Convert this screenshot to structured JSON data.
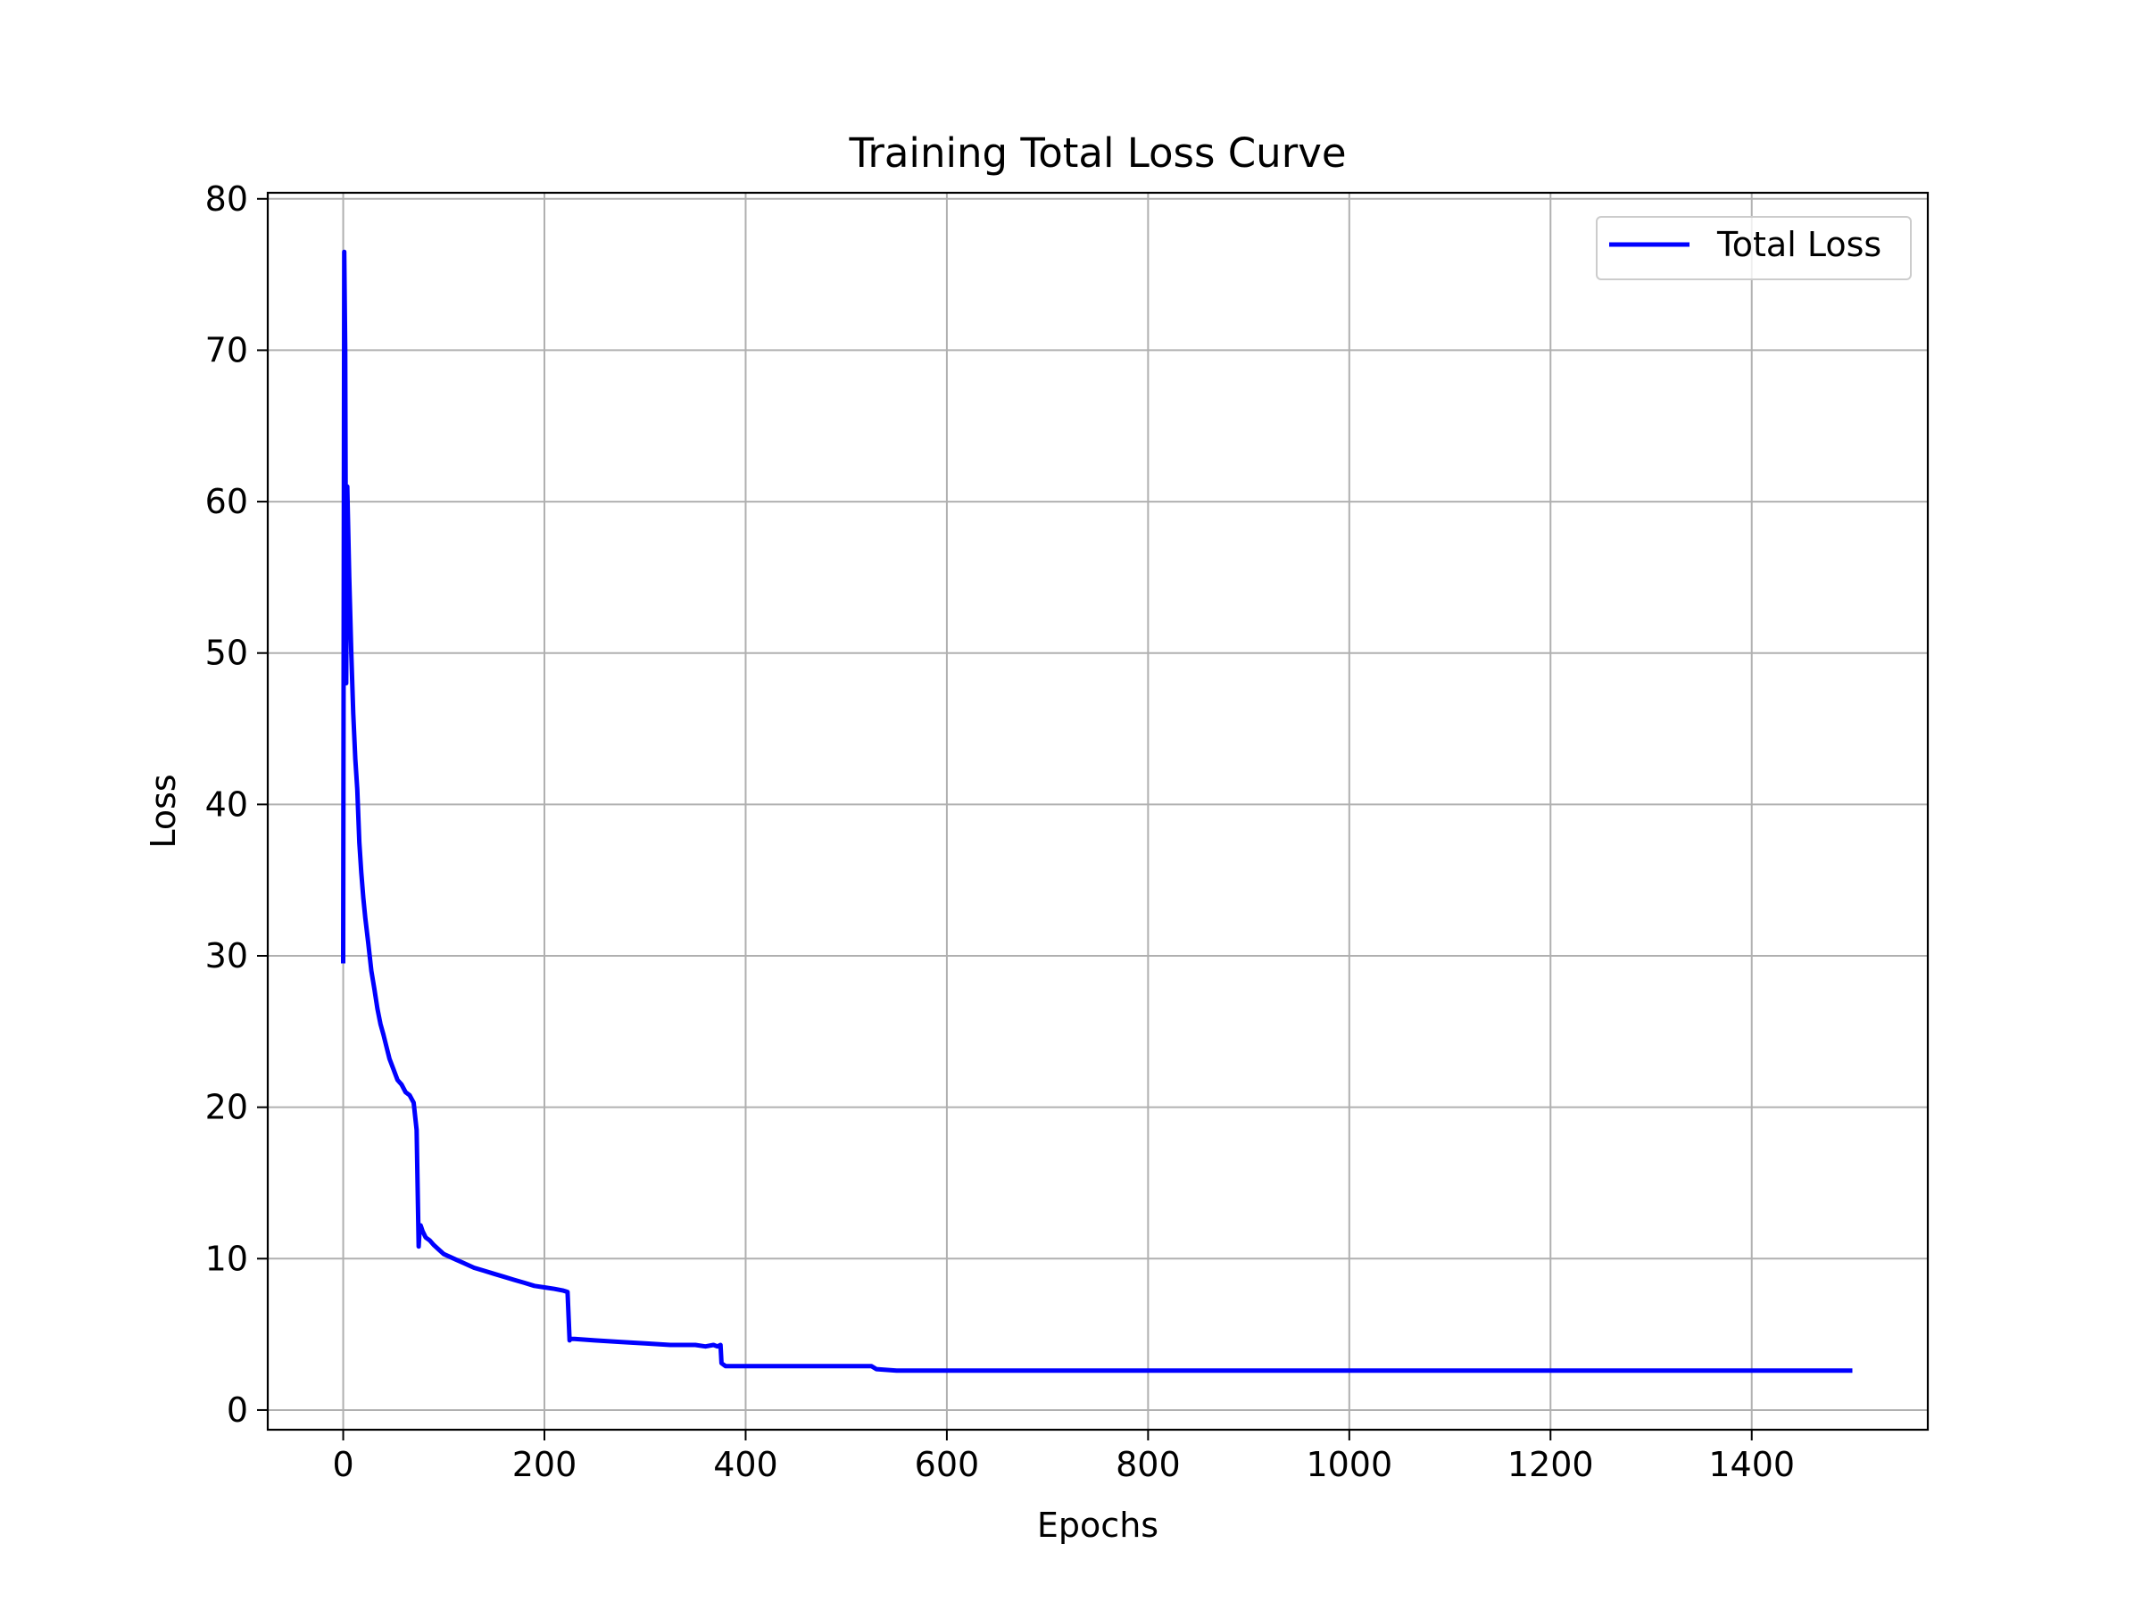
{
  "chart_data": {
    "type": "line",
    "title": "Training Total Loss Curve",
    "xlabel": "Epochs",
    "ylabel": "Loss",
    "xlim": [
      -75,
      1575
    ],
    "ylim": [
      -1.3,
      80.4
    ],
    "xticks": [
      0,
      200,
      400,
      600,
      800,
      1000,
      1200,
      1400
    ],
    "yticks": [
      0,
      10,
      20,
      30,
      40,
      50,
      60,
      70,
      80
    ],
    "xtick_labels": [
      "0",
      "200",
      "400",
      "600",
      "800",
      "1000",
      "1200",
      "1400"
    ],
    "ytick_labels": [
      "0",
      "10",
      "20",
      "30",
      "40",
      "50",
      "60",
      "70",
      "80"
    ],
    "grid": true,
    "legend_position": "top-right",
    "series": [
      {
        "name": "Total Loss",
        "color": "#0000ff",
        "x": [
          0,
          1,
          2,
          3,
          4,
          5,
          6,
          8,
          10,
          12,
          14,
          16,
          18,
          20,
          22,
          25,
          28,
          31,
          34,
          37,
          40,
          43,
          46,
          50,
          54,
          58,
          62,
          66,
          70,
          73,
          75,
          76,
          77,
          79,
          82,
          86,
          90,
          95,
          100,
          110,
          120,
          130,
          140,
          150,
          160,
          170,
          180,
          190,
          200,
          210,
          218,
          223,
          225,
          226,
          230,
          250,
          275,
          300,
          325,
          350,
          360,
          368,
          372,
          375,
          376,
          378,
          380,
          400,
          420,
          440,
          460,
          480,
          500,
          515,
          522,
          525,
          530,
          550,
          600,
          700,
          800,
          900,
          1000,
          1100,
          1200,
          1300,
          1400,
          1500
        ],
        "y": [
          29.5,
          76.5,
          70.0,
          48.0,
          61.0,
          58.0,
          55.0,
          50.0,
          46.0,
          43.0,
          41.0,
          37.5,
          35.5,
          33.8,
          32.5,
          30.8,
          29.0,
          27.8,
          26.5,
          25.5,
          24.8,
          24.0,
          23.2,
          22.5,
          21.8,
          21.5,
          21.0,
          20.8,
          20.3,
          18.5,
          10.8,
          12.0,
          12.2,
          11.8,
          11.4,
          11.2,
          10.9,
          10.6,
          10.3,
          10.0,
          9.7,
          9.4,
          9.2,
          9.0,
          8.8,
          8.6,
          8.4,
          8.2,
          8.1,
          8.0,
          7.9,
          7.8,
          4.6,
          4.7,
          4.7,
          4.6,
          4.5,
          4.4,
          4.3,
          4.3,
          4.2,
          4.3,
          4.2,
          4.3,
          3.1,
          3.0,
          2.9,
          2.9,
          2.9,
          2.9,
          2.9,
          2.9,
          2.9,
          2.9,
          2.9,
          2.9,
          2.7,
          2.6,
          2.6,
          2.6,
          2.6,
          2.6,
          2.6,
          2.6,
          2.6,
          2.6,
          2.6,
          2.6
        ]
      }
    ]
  }
}
